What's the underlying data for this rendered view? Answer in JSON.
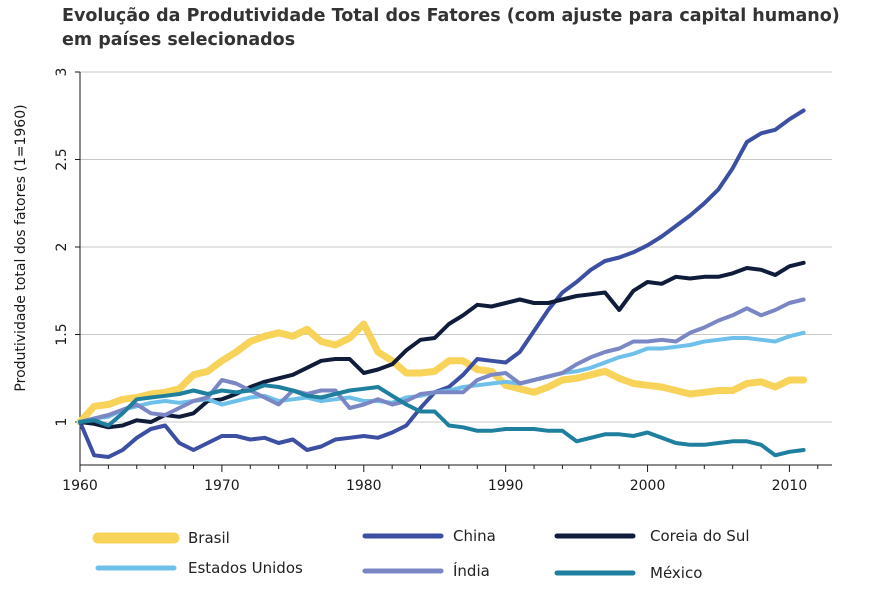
{
  "chart_data": {
    "type": "line",
    "title": "Evolução da Produtividade Total dos Fatores (com ajuste para capital humano) em países selecionados",
    "xlabel": "",
    "ylabel": "Produtividade total dos fatores (1=1960)",
    "xlim": [
      1960,
      2013
    ],
    "ylim": [
      0.8,
      3
    ],
    "x_ticks": [
      "1960",
      "1970",
      "1980",
      "1990",
      "2000",
      "2010"
    ],
    "y_ticks": [
      "1",
      "1.5",
      "2",
      "2.5",
      "3"
    ],
    "grid": "horizontal",
    "legend_position": "bottom",
    "x": [
      1960,
      1961,
      1962,
      1963,
      1964,
      1965,
      1966,
      1967,
      1968,
      1969,
      1970,
      1971,
      1972,
      1973,
      1974,
      1975,
      1976,
      1977,
      1978,
      1979,
      1980,
      1981,
      1982,
      1983,
      1984,
      1985,
      1986,
      1987,
      1988,
      1989,
      1990,
      1991,
      1992,
      1993,
      1994,
      1995,
      1996,
      1997,
      1998,
      1999,
      2000,
      2001,
      2002,
      2003,
      2004,
      2005,
      2006,
      2007,
      2008,
      2009,
      2010,
      2011
    ],
    "series": [
      {
        "name": "Brasil",
        "color": "#f7d35a",
        "width": 7,
        "values": [
          1.0,
          1.09,
          1.1,
          1.13,
          1.14,
          1.16,
          1.17,
          1.19,
          1.27,
          1.29,
          1.35,
          1.4,
          1.46,
          1.49,
          1.51,
          1.49,
          1.53,
          1.46,
          1.44,
          1.48,
          1.56,
          1.4,
          1.35,
          1.28,
          1.28,
          1.29,
          1.35,
          1.35,
          1.3,
          1.29,
          1.21,
          1.19,
          1.17,
          1.2,
          1.24,
          1.25,
          1.27,
          1.29,
          1.25,
          1.22,
          1.21,
          1.2,
          1.18,
          1.16,
          1.17,
          1.18,
          1.18,
          1.22,
          1.23,
          1.2,
          1.24,
          1.24
        ]
      },
      {
        "name": "China",
        "color": "#3c4fa3",
        "width": 4,
        "values": [
          1.0,
          0.81,
          0.8,
          0.84,
          0.91,
          0.96,
          0.98,
          0.88,
          0.84,
          0.88,
          0.92,
          0.92,
          0.9,
          0.91,
          0.88,
          0.9,
          0.84,
          0.86,
          0.9,
          0.91,
          0.92,
          0.91,
          0.94,
          0.98,
          1.08,
          1.17,
          1.2,
          1.27,
          1.36,
          1.35,
          1.34,
          1.4,
          1.52,
          1.64,
          1.74,
          1.8,
          1.87,
          1.92,
          1.94,
          1.97,
          2.01,
          2.06,
          2.12,
          2.18,
          2.25,
          2.33,
          2.45,
          2.6,
          2.65,
          2.67,
          2.73,
          2.78
        ]
      },
      {
        "name": "Coreia do Sul",
        "color": "#0f1c3a",
        "width": 4,
        "values": [
          1.0,
          0.99,
          0.97,
          0.98,
          1.01,
          1.0,
          1.04,
          1.03,
          1.05,
          1.12,
          1.13,
          1.16,
          1.2,
          1.23,
          1.25,
          1.27,
          1.31,
          1.35,
          1.36,
          1.36,
          1.28,
          1.3,
          1.33,
          1.41,
          1.47,
          1.48,
          1.56,
          1.61,
          1.67,
          1.66,
          1.68,
          1.7,
          1.68,
          1.68,
          1.7,
          1.72,
          1.73,
          1.74,
          1.64,
          1.75,
          1.8,
          1.79,
          1.83,
          1.82,
          1.83,
          1.83,
          1.85,
          1.88,
          1.87,
          1.84,
          1.89,
          1.91
        ]
      },
      {
        "name": "Estados Unidos",
        "color": "#6ec0ea",
        "width": 4,
        "values": [
          1.0,
          1.02,
          1.03,
          1.07,
          1.09,
          1.11,
          1.12,
          1.11,
          1.12,
          1.13,
          1.1,
          1.12,
          1.14,
          1.15,
          1.12,
          1.13,
          1.14,
          1.12,
          1.13,
          1.14,
          1.12,
          1.12,
          1.11,
          1.14,
          1.15,
          1.17,
          1.18,
          1.2,
          1.21,
          1.22,
          1.23,
          1.22,
          1.24,
          1.26,
          1.28,
          1.29,
          1.31,
          1.34,
          1.37,
          1.39,
          1.42,
          1.42,
          1.43,
          1.44,
          1.46,
          1.47,
          1.48,
          1.48,
          1.47,
          1.46,
          1.49,
          1.51
        ]
      },
      {
        "name": "Índia",
        "color": "#7b87c4",
        "width": 4,
        "values": [
          1.0,
          1.02,
          1.04,
          1.07,
          1.1,
          1.05,
          1.04,
          1.08,
          1.12,
          1.14,
          1.24,
          1.22,
          1.18,
          1.14,
          1.1,
          1.18,
          1.16,
          1.18,
          1.18,
          1.08,
          1.1,
          1.13,
          1.1,
          1.12,
          1.16,
          1.17,
          1.17,
          1.17,
          1.24,
          1.27,
          1.28,
          1.22,
          1.24,
          1.26,
          1.28,
          1.33,
          1.37,
          1.4,
          1.42,
          1.46,
          1.46,
          1.47,
          1.46,
          1.51,
          1.54,
          1.58,
          1.61,
          1.65,
          1.61,
          1.64,
          1.68,
          1.7
        ]
      },
      {
        "name": "México",
        "color": "#1e7f9e",
        "width": 4,
        "values": [
          1.0,
          1.01,
          0.98,
          1.05,
          1.13,
          1.14,
          1.15,
          1.16,
          1.18,
          1.16,
          1.18,
          1.17,
          1.18,
          1.21,
          1.2,
          1.18,
          1.15,
          1.14,
          1.16,
          1.18,
          1.19,
          1.2,
          1.15,
          1.1,
          1.06,
          1.06,
          0.98,
          0.97,
          0.95,
          0.95,
          0.96,
          0.96,
          0.96,
          0.95,
          0.95,
          0.89,
          0.91,
          0.93,
          0.93,
          0.92,
          0.94,
          0.91,
          0.88,
          0.87,
          0.87,
          0.88,
          0.89,
          0.89,
          0.87,
          0.81,
          0.83,
          0.84
        ]
      }
    ]
  }
}
